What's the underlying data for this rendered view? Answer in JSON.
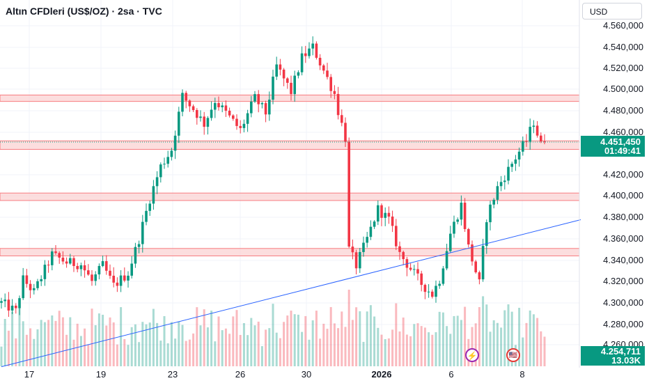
{
  "header": {
    "title": "Altın CFDleri (US$/OZ) · 2sa · TVC",
    "currency": "USD"
  },
  "price_axis": [
    "4.560,000",
    "4.540,000",
    "4.520,000",
    "4.500,000",
    "4.480,000",
    "4.460,000",
    "4.420,000",
    "4.400,000",
    "4.380,000",
    "4.360,000",
    "4.340,000",
    "4.320,000",
    "4.300,000",
    "4.280,000",
    "4.260,000"
  ],
  "time_axis": [
    {
      "label": "17",
      "bold": false
    },
    {
      "label": "19",
      "bold": false
    },
    {
      "label": "23",
      "bold": false
    },
    {
      "label": "26",
      "bold": false
    },
    {
      "label": "30",
      "bold": false
    },
    {
      "label": "2026",
      "bold": true
    },
    {
      "label": "6",
      "bold": false
    },
    {
      "label": "8",
      "bold": false
    }
  ],
  "last_price": {
    "price": "4.451,450",
    "countdown": "01:49:41"
  },
  "volume_label": {
    "price": "4.254,711",
    "volume": "13.03K"
  },
  "events": {
    "lightning": "⚡",
    "flag": "🇺🇸"
  },
  "colors": {
    "up": "#089981",
    "down": "#f23645",
    "zone_fill": "#fbd0d0",
    "zone_line": "#f77c80",
    "trendline": "#2962ff",
    "badge": "#089981"
  },
  "chart_data": {
    "type": "candlestick",
    "title": "Altın CFDleri (US$/OZ) · 2sa · TVC",
    "y_range": [
      4253,
      4572
    ],
    "x_labels": [
      "17",
      "19",
      "23",
      "26",
      "30",
      "2026",
      "6",
      "8"
    ],
    "resistance_zones": [
      [
        4489,
        4495
      ],
      [
        4444,
        4452
      ],
      [
        4396,
        4403
      ],
      [
        4344,
        4351
      ]
    ],
    "trendline": {
      "start": {
        "bar": 0,
        "price": 4240
      },
      "end": {
        "bar": 150,
        "price": 4378
      }
    },
    "path_points": [
      [
        0,
        4300
      ],
      [
        4,
        4292
      ],
      [
        6,
        4322
      ],
      [
        9,
        4310
      ],
      [
        14,
        4345
      ],
      [
        18,
        4338
      ],
      [
        22,
        4336
      ],
      [
        25,
        4320
      ],
      [
        28,
        4335
      ],
      [
        31,
        4316
      ],
      [
        35,
        4328
      ],
      [
        38,
        4360
      ],
      [
        41,
        4398
      ],
      [
        44,
        4428
      ],
      [
        47,
        4444
      ],
      [
        50,
        4494
      ],
      [
        53,
        4482
      ],
      [
        56,
        4468
      ],
      [
        59,
        4490
      ],
      [
        62,
        4478
      ],
      [
        66,
        4462
      ],
      [
        70,
        4492
      ],
      [
        73,
        4478
      ],
      [
        76,
        4522
      ],
      [
        80,
        4498
      ],
      [
        83,
        4530
      ],
      [
        86,
        4540
      ],
      [
        89,
        4518
      ],
      [
        92,
        4496
      ],
      [
        93,
        4480
      ],
      [
        95,
        4455
      ],
      [
        96,
        4350
      ],
      [
        98,
        4335
      ],
      [
        101,
        4360
      ],
      [
        104,
        4388
      ],
      [
        107,
        4378
      ],
      [
        110,
        4346
      ],
      [
        113,
        4332
      ],
      [
        116,
        4318
      ],
      [
        119,
        4308
      ],
      [
        121,
        4322
      ],
      [
        124,
        4365
      ],
      [
        127,
        4392
      ],
      [
        129,
        4352
      ],
      [
        132,
        4318
      ],
      [
        134,
        4380
      ],
      [
        137,
        4408
      ],
      [
        140,
        4425
      ],
      [
        143,
        4442
      ],
      [
        145,
        4452
      ],
      [
        147,
        4470
      ],
      [
        149,
        4448
      ],
      [
        150,
        4451
      ]
    ],
    "volume_range": [
      0,
      33000
    ]
  }
}
